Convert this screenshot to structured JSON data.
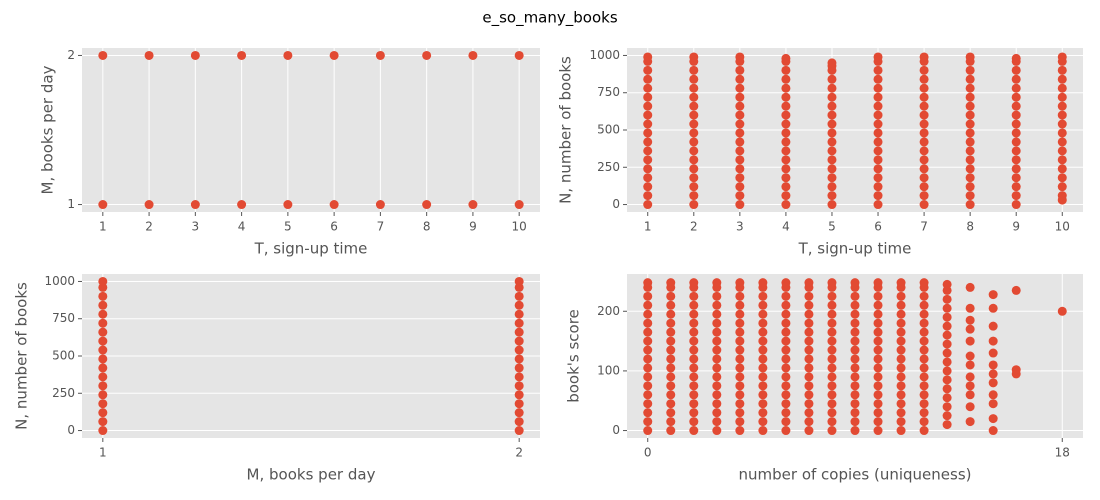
{
  "title": "e_so_many_books",
  "chart_data": [
    {
      "type": "scatter",
      "x_label": "T, sign-up time",
      "y_label": "M, books per day",
      "color": "#E24A33",
      "grid": true,
      "xlim": [
        0.55,
        10.45
      ],
      "ylim": [
        0.95,
        2.05
      ],
      "xticks": [
        1,
        2,
        3,
        4,
        5,
        6,
        7,
        8,
        9,
        10
      ],
      "yticks": [
        1,
        2
      ],
      "x": [
        1,
        2,
        3,
        4,
        5,
        6,
        7,
        8,
        9,
        10,
        1,
        2,
        3,
        4,
        5,
        6,
        7,
        8,
        9,
        10
      ],
      "y": [
        1,
        1,
        1,
        1,
        1,
        1,
        1,
        1,
        1,
        1,
        2,
        2,
        2,
        2,
        2,
        2,
        2,
        2,
        2,
        2
      ]
    },
    {
      "type": "scatter",
      "x_label": "T, sign-up time",
      "y_label": "N, number of books",
      "color": "#E24A33",
      "grid": true,
      "xlim": [
        0.55,
        10.45
      ],
      "ylim": [
        -50,
        1050
      ],
      "xticks": [
        1,
        2,
        3,
        4,
        5,
        6,
        7,
        8,
        9,
        10
      ],
      "yticks": [
        0,
        250,
        500,
        750,
        1000
      ],
      "x": [
        1,
        1,
        1,
        1,
        1,
        1,
        1,
        1,
        1,
        1,
        1,
        1,
        1,
        1,
        1,
        1,
        1,
        1,
        2,
        2,
        2,
        2,
        2,
        2,
        2,
        2,
        2,
        2,
        2,
        2,
        2,
        2,
        2,
        2,
        2,
        2,
        3,
        3,
        3,
        3,
        3,
        3,
        3,
        3,
        3,
        3,
        3,
        3,
        3,
        3,
        3,
        3,
        3,
        3,
        4,
        4,
        4,
        4,
        4,
        4,
        4,
        4,
        4,
        4,
        4,
        4,
        4,
        4,
        4,
        4,
        4,
        4,
        5,
        5,
        5,
        5,
        5,
        5,
        5,
        5,
        5,
        5,
        5,
        5,
        5,
        5,
        5,
        5,
        5,
        5,
        6,
        6,
        6,
        6,
        6,
        6,
        6,
        6,
        6,
        6,
        6,
        6,
        6,
        6,
        6,
        6,
        6,
        6,
        7,
        7,
        7,
        7,
        7,
        7,
        7,
        7,
        7,
        7,
        7,
        7,
        7,
        7,
        7,
        7,
        7,
        7,
        8,
        8,
        8,
        8,
        8,
        8,
        8,
        8,
        8,
        8,
        8,
        8,
        8,
        8,
        8,
        8,
        8,
        8,
        9,
        9,
        9,
        9,
        9,
        9,
        9,
        9,
        9,
        9,
        9,
        9,
        9,
        9,
        9,
        9,
        9,
        9,
        10,
        10,
        10,
        10,
        10,
        10,
        10,
        10,
        10,
        10,
        10,
        10,
        10,
        10,
        10,
        10,
        10,
        10
      ],
      "y": [
        0,
        60,
        120,
        180,
        240,
        300,
        360,
        420,
        480,
        540,
        600,
        660,
        720,
        780,
        840,
        900,
        960,
        990,
        0,
        60,
        120,
        180,
        240,
        300,
        360,
        420,
        480,
        540,
        600,
        660,
        720,
        780,
        840,
        900,
        960,
        990,
        0,
        60,
        120,
        180,
        240,
        300,
        360,
        420,
        480,
        540,
        600,
        660,
        720,
        780,
        840,
        900,
        960,
        990,
        0,
        60,
        120,
        180,
        240,
        300,
        360,
        420,
        480,
        540,
        600,
        660,
        720,
        780,
        840,
        900,
        960,
        980,
        0,
        60,
        120,
        180,
        240,
        300,
        360,
        420,
        480,
        540,
        600,
        660,
        720,
        780,
        840,
        900,
        930,
        950,
        0,
        60,
        120,
        180,
        240,
        300,
        360,
        420,
        480,
        540,
        600,
        660,
        720,
        780,
        840,
        900,
        960,
        990,
        0,
        60,
        120,
        180,
        240,
        300,
        360,
        420,
        480,
        540,
        600,
        660,
        720,
        780,
        840,
        900,
        960,
        990,
        0,
        60,
        120,
        180,
        240,
        300,
        360,
        420,
        480,
        540,
        600,
        660,
        720,
        780,
        840,
        900,
        960,
        990,
        0,
        60,
        120,
        180,
        240,
        300,
        360,
        420,
        480,
        540,
        600,
        660,
        720,
        780,
        840,
        900,
        960,
        980,
        30,
        60,
        120,
        180,
        240,
        300,
        360,
        420,
        480,
        540,
        600,
        660,
        720,
        780,
        840,
        900,
        960,
        990
      ]
    },
    {
      "type": "scatter",
      "x_label": "M, books per day",
      "y_label": "N, number of books",
      "color": "#E24A33",
      "grid": true,
      "xlim": [
        0.95,
        2.05
      ],
      "ylim": [
        -50,
        1050
      ],
      "xticks": [
        1,
        2
      ],
      "yticks": [
        0,
        250,
        500,
        750,
        1000
      ],
      "x": [
        1,
        1,
        1,
        1,
        1,
        1,
        1,
        1,
        1,
        1,
        1,
        1,
        1,
        1,
        1,
        1,
        1,
        1,
        2,
        2,
        2,
        2,
        2,
        2,
        2,
        2,
        2,
        2,
        2,
        2,
        2,
        2,
        2,
        2,
        2,
        2
      ],
      "y": [
        0,
        60,
        120,
        180,
        240,
        300,
        360,
        420,
        480,
        540,
        600,
        660,
        720,
        780,
        840,
        900,
        960,
        1000,
        0,
        60,
        120,
        180,
        240,
        300,
        360,
        420,
        480,
        540,
        600,
        660,
        720,
        780,
        840,
        900,
        960,
        1000
      ]
    },
    {
      "type": "scatter",
      "x_label": "number of copies (uniqueness)",
      "y_label": "book's score",
      "color": "#E24A33",
      "grid": true,
      "xlim": [
        -0.9,
        18.9
      ],
      "ylim": [
        -12.5,
        262.5
      ],
      "xticks": [
        0,
        18
      ],
      "yticks": [
        0,
        100,
        200
      ],
      "x": [
        0,
        0,
        0,
        0,
        0,
        0,
        0,
        0,
        0,
        0,
        0,
        0,
        0,
        0,
        0,
        0,
        0,
        0,
        1,
        1,
        1,
        1,
        1,
        1,
        1,
        1,
        1,
        1,
        1,
        1,
        1,
        1,
        1,
        1,
        1,
        1,
        2,
        2,
        2,
        2,
        2,
        2,
        2,
        2,
        2,
        2,
        2,
        2,
        2,
        2,
        2,
        2,
        2,
        2,
        3,
        3,
        3,
        3,
        3,
        3,
        3,
        3,
        3,
        3,
        3,
        3,
        3,
        3,
        3,
        3,
        3,
        3,
        4,
        4,
        4,
        4,
        4,
        4,
        4,
        4,
        4,
        4,
        4,
        4,
        4,
        4,
        4,
        4,
        4,
        4,
        5,
        5,
        5,
        5,
        5,
        5,
        5,
        5,
        5,
        5,
        5,
        5,
        5,
        5,
        5,
        5,
        5,
        5,
        6,
        6,
        6,
        6,
        6,
        6,
        6,
        6,
        6,
        6,
        6,
        6,
        6,
        6,
        6,
        6,
        6,
        6,
        7,
        7,
        7,
        7,
        7,
        7,
        7,
        7,
        7,
        7,
        7,
        7,
        7,
        7,
        7,
        7,
        7,
        7,
        8,
        8,
        8,
        8,
        8,
        8,
        8,
        8,
        8,
        8,
        8,
        8,
        8,
        8,
        8,
        8,
        8,
        8,
        9,
        9,
        9,
        9,
        9,
        9,
        9,
        9,
        9,
        9,
        9,
        9,
        9,
        9,
        9,
        9,
        9,
        9,
        10,
        10,
        10,
        10,
        10,
        10,
        10,
        10,
        10,
        10,
        10,
        10,
        10,
        10,
        10,
        10,
        10,
        10,
        11,
        11,
        11,
        11,
        11,
        11,
        11,
        11,
        11,
        11,
        11,
        11,
        11,
        11,
        11,
        11,
        11,
        11,
        12,
        12,
        12,
        12,
        12,
        12,
        12,
        12,
        12,
        12,
        12,
        12,
        12,
        12,
        12,
        12,
        12,
        12,
        13,
        13,
        13,
        13,
        13,
        13,
        13,
        13,
        13,
        13,
        13,
        13,
        13,
        13,
        13,
        13,
        13,
        14,
        14,
        14,
        14,
        14,
        14,
        14,
        14,
        14,
        14,
        14,
        14,
        15,
        15,
        15,
        15,
        15,
        15,
        15,
        15,
        15,
        15,
        15,
        15,
        16,
        16,
        16,
        18
      ],
      "y": [
        0,
        15,
        30,
        45,
        60,
        75,
        90,
        105,
        120,
        135,
        150,
        165,
        180,
        195,
        210,
        225,
        240,
        248,
        0,
        15,
        30,
        45,
        60,
        75,
        90,
        105,
        120,
        135,
        150,
        165,
        180,
        195,
        210,
        225,
        240,
        248,
        0,
        15,
        30,
        45,
        60,
        75,
        90,
        105,
        120,
        135,
        150,
        165,
        180,
        195,
        210,
        225,
        240,
        248,
        0,
        15,
        30,
        45,
        60,
        75,
        90,
        105,
        120,
        135,
        150,
        165,
        180,
        195,
        210,
        225,
        240,
        248,
        0,
        15,
        30,
        45,
        60,
        75,
        90,
        105,
        120,
        135,
        150,
        165,
        180,
        195,
        210,
        225,
        240,
        248,
        0,
        15,
        30,
        45,
        60,
        75,
        90,
        105,
        120,
        135,
        150,
        165,
        180,
        195,
        210,
        225,
        240,
        248,
        0,
        15,
        30,
        45,
        60,
        75,
        90,
        105,
        120,
        135,
        150,
        165,
        180,
        195,
        210,
        225,
        240,
        248,
        0,
        15,
        30,
        45,
        60,
        75,
        90,
        105,
        120,
        135,
        150,
        165,
        180,
        195,
        210,
        225,
        240,
        248,
        0,
        15,
        30,
        45,
        60,
        75,
        90,
        105,
        120,
        135,
        150,
        165,
        180,
        195,
        210,
        225,
        240,
        248,
        0,
        15,
        30,
        45,
        60,
        75,
        90,
        105,
        120,
        135,
        150,
        165,
        180,
        195,
        210,
        225,
        240,
        248,
        0,
        15,
        30,
        45,
        60,
        75,
        90,
        105,
        120,
        135,
        150,
        165,
        180,
        195,
        210,
        225,
        240,
        248,
        0,
        15,
        30,
        45,
        60,
        75,
        90,
        105,
        120,
        135,
        150,
        165,
        180,
        195,
        210,
        225,
        240,
        248,
        0,
        15,
        30,
        45,
        60,
        75,
        90,
        105,
        120,
        135,
        150,
        165,
        180,
        195,
        210,
        225,
        240,
        248,
        10,
        25,
        40,
        55,
        70,
        85,
        100,
        115,
        130,
        145,
        160,
        175,
        190,
        205,
        220,
        235,
        245,
        15,
        40,
        60,
        75,
        90,
        110,
        125,
        150,
        170,
        185,
        205,
        240,
        0,
        20,
        45,
        60,
        80,
        95,
        110,
        130,
        150,
        175,
        205,
        228,
        95,
        102,
        235,
        200
      ]
    }
  ]
}
